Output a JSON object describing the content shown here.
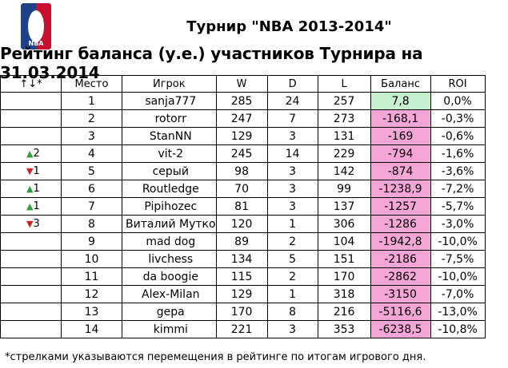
{
  "header": {
    "title": "Турнир \"NBA 2013-2014\"",
    "logo_text": "NBA"
  },
  "subtitle": "Рейтинг баланса (у.е.) участников Турнира на 31.03.2014",
  "columns": [
    "↑↓*",
    "Место",
    "Игрок",
    "W",
    "D",
    "L",
    "Баланс",
    "ROI"
  ],
  "rows": [
    {
      "move_dir": "",
      "move_val": "",
      "place": "1",
      "player": "sanja777",
      "w": "285",
      "d": "24",
      "l": "257",
      "balance": "7,8",
      "roi": "0,0%",
      "positive": true
    },
    {
      "move_dir": "",
      "move_val": "",
      "place": "2",
      "player": "rotorr",
      "w": "247",
      "d": "7",
      "l": "273",
      "balance": "-168,1",
      "roi": "-0,3%",
      "positive": false
    },
    {
      "move_dir": "",
      "move_val": "",
      "place": "3",
      "player": "StanNN",
      "w": "129",
      "d": "3",
      "l": "131",
      "balance": "-169",
      "roi": "-0,6%",
      "positive": false
    },
    {
      "move_dir": "up",
      "move_val": "2",
      "place": "4",
      "player": "vit-2",
      "w": "245",
      "d": "14",
      "l": "229",
      "balance": "-794",
      "roi": "-1,6%",
      "positive": false
    },
    {
      "move_dir": "down",
      "move_val": "1",
      "place": "5",
      "player": "серый",
      "w": "98",
      "d": "3",
      "l": "142",
      "balance": "-874",
      "roi": "-3,6%",
      "positive": false
    },
    {
      "move_dir": "up",
      "move_val": "1",
      "place": "6",
      "player": "Routledge",
      "w": "70",
      "d": "3",
      "l": "99",
      "balance": "-1238,9",
      "roi": "-7,2%",
      "positive": false
    },
    {
      "move_dir": "up",
      "move_val": "1",
      "place": "7",
      "player": "Pipihozec",
      "w": "81",
      "d": "3",
      "l": "137",
      "balance": "-1257",
      "roi": "-5,7%",
      "positive": false
    },
    {
      "move_dir": "down",
      "move_val": "3",
      "place": "8",
      "player": "Виталий Мутко",
      "w": "120",
      "d": "1",
      "l": "306",
      "balance": "-1286",
      "roi": "-3,0%",
      "positive": false
    },
    {
      "move_dir": "",
      "move_val": "",
      "place": "9",
      "player": "mad dog",
      "w": "89",
      "d": "2",
      "l": "104",
      "balance": "-1942,8",
      "roi": "-10,0%",
      "positive": false
    },
    {
      "move_dir": "",
      "move_val": "",
      "place": "10",
      "player": "livchess",
      "w": "134",
      "d": "5",
      "l": "151",
      "balance": "-2186",
      "roi": "-7,5%",
      "positive": false
    },
    {
      "move_dir": "",
      "move_val": "",
      "place": "11",
      "player": "da boogie",
      "w": "115",
      "d": "2",
      "l": "170",
      "balance": "-2862",
      "roi": "-10,0%",
      "positive": false
    },
    {
      "move_dir": "",
      "move_val": "",
      "place": "12",
      "player": "Alex-Milan",
      "w": "129",
      "d": "1",
      "l": "318",
      "balance": "-3150",
      "roi": "-7,0%",
      "positive": false
    },
    {
      "move_dir": "",
      "move_val": "",
      "place": "13",
      "player": "gepa",
      "w": "170",
      "d": "8",
      "l": "216",
      "balance": "-5116,6",
      "roi": "-13,0%",
      "positive": false
    },
    {
      "move_dir": "",
      "move_val": "",
      "place": "14",
      "player": "kimmi",
      "w": "221",
      "d": "3",
      "l": "353",
      "balance": "-6238,5",
      "roi": "-10,8%",
      "positive": false
    }
  ],
  "footnote": "*стрелками указываются перемещения в рейтинге по итогам игрового дня.",
  "colors": {
    "positive_balance": "#c6efce",
    "negative_balance": "#f4a6d7",
    "arrow_up": "#2e9e3a",
    "arrow_down": "#d32020"
  }
}
